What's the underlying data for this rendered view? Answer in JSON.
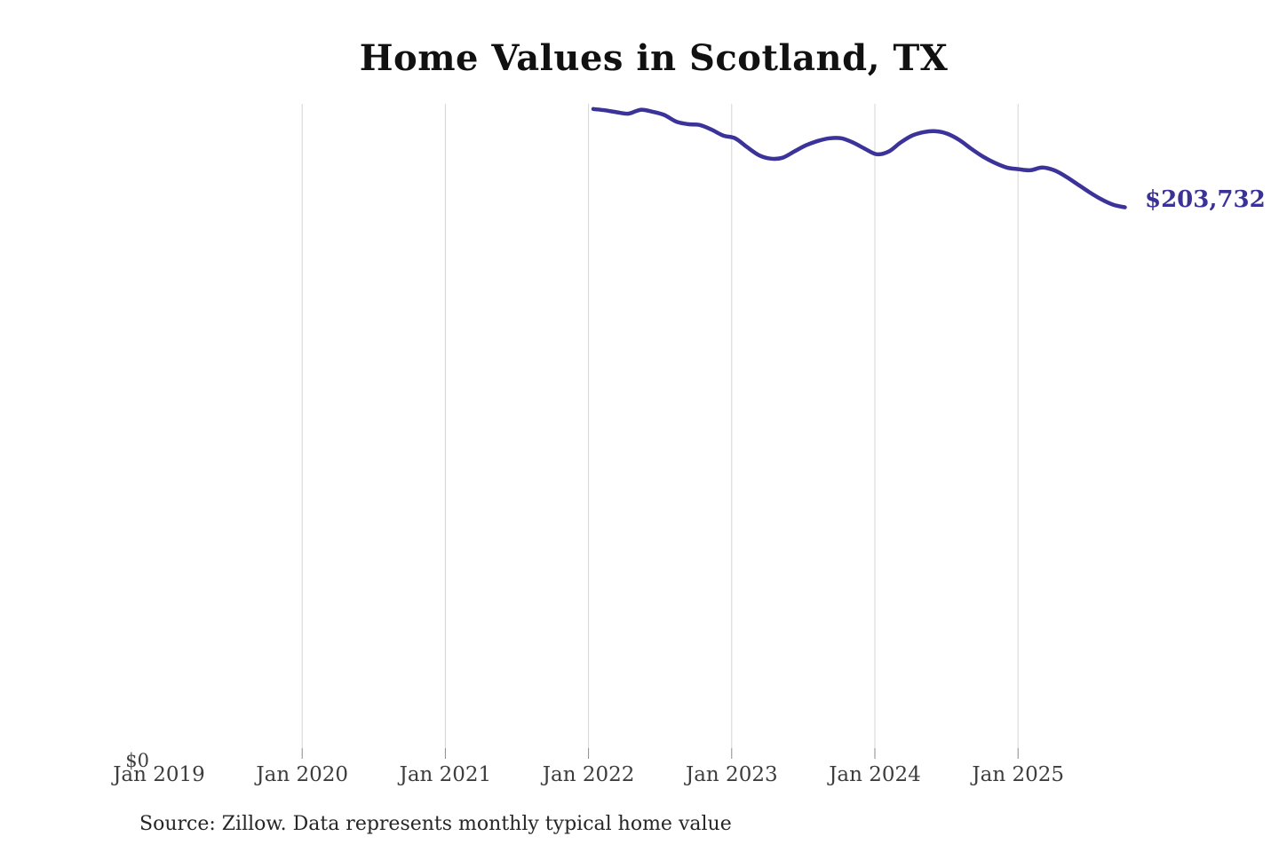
{
  "title": "Home Values in Scotland, TX",
  "source_note": "Source: Zillow. Data represents monthly typical home value",
  "zero_label": "$0",
  "end_label": "$203,732",
  "colors": {
    "line": "#3b3399",
    "end_label": "#3a3199",
    "grid": "#d4d4d4",
    "tick": "#8a8a8a",
    "axis_text": "#3d3d3d",
    "title_text": "#111111",
    "source_text": "#262626",
    "background": "#ffffff"
  },
  "x_axis": {
    "ticks": [
      {
        "label": "Jan 2019",
        "year": 2019,
        "grid": false
      },
      {
        "label": "Jan 2020",
        "year": 2020,
        "grid": true
      },
      {
        "label": "Jan 2021",
        "year": 2021,
        "grid": true
      },
      {
        "label": "Jan 2022",
        "year": 2022,
        "grid": true
      },
      {
        "label": "Jan 2023",
        "year": 2023,
        "grid": true
      },
      {
        "label": "Jan 2024",
        "year": 2024,
        "grid": true
      },
      {
        "label": "Jan 2025",
        "year": 2025,
        "grid": true
      }
    ]
  },
  "chart_data": {
    "type": "line",
    "title": "Home Values in Scotland, TX",
    "series_name": "Monthly typical home value",
    "xlabel": "",
    "ylabel": "",
    "x_range_shown": [
      "Jan 2019",
      "Jan 2025"
    ],
    "ylim": [
      0,
      240000
    ],
    "y_min_label": "$0",
    "grid": "vertical yearly gridlines, no y-axis line",
    "legend": "none",
    "last_value": 203732,
    "last_value_label": "$203,732",
    "x": [
      "2022-01",
      "2022-02",
      "2022-03",
      "2022-04",
      "2022-05",
      "2022-06",
      "2022-07",
      "2022-08",
      "2022-09",
      "2022-10",
      "2022-11",
      "2022-12",
      "2023-01",
      "2023-02",
      "2023-03",
      "2023-04",
      "2023-05",
      "2023-06",
      "2023-07",
      "2023-08",
      "2023-09",
      "2023-10",
      "2023-11",
      "2023-12",
      "2024-01",
      "2024-02",
      "2024-03",
      "2024-04",
      "2024-05",
      "2024-06",
      "2024-07",
      "2024-08",
      "2024-09",
      "2024-10",
      "2024-11",
      "2024-12",
      "2025-01",
      "2025-02",
      "2025-03",
      "2025-04",
      "2025-05",
      "2025-06",
      "2025-07",
      "2025-08",
      "2025-09",
      "2025-10"
    ],
    "values": [
      240000,
      239500,
      238800,
      238300,
      239700,
      239000,
      237800,
      235400,
      234400,
      234100,
      232400,
      230200,
      229200,
      226000,
      223000,
      221700,
      222000,
      224300,
      226600,
      228200,
      229200,
      229200,
      227600,
      225300,
      223300,
      224300,
      227600,
      230200,
      231500,
      231800,
      230800,
      228500,
      225300,
      222400,
      220100,
      218400,
      217800,
      217400,
      218400,
      217400,
      215100,
      212200,
      209300,
      206700,
      204700,
      203732
    ]
  }
}
